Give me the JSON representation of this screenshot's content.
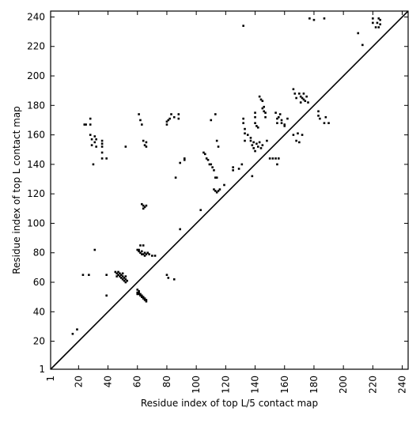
{
  "chart_data": {
    "type": "scatter",
    "subtype": "contact-map",
    "xlabel": "Residue index of top L/5 contact map",
    "ylabel": "Residue index of top L contact map",
    "xlim": [
      1,
      244
    ],
    "ylim": [
      1,
      244
    ],
    "xticks": [
      1,
      20,
      40,
      60,
      80,
      100,
      120,
      140,
      160,
      180,
      200,
      220,
      240
    ],
    "yticks": [
      1,
      20,
      40,
      60,
      80,
      100,
      120,
      140,
      160,
      180,
      200,
      220,
      240
    ],
    "diagonal": true,
    "marker_color": "#000000",
    "grid": false,
    "lower_triangle_points": [
      [
        16,
        25
      ],
      [
        19,
        28
      ],
      [
        23,
        65
      ],
      [
        27,
        65
      ],
      [
        31,
        82
      ],
      [
        39,
        51
      ],
      [
        39,
        65
      ],
      [
        45,
        67
      ],
      [
        46,
        66
      ],
      [
        47,
        65
      ],
      [
        48,
        64
      ],
      [
        49,
        63
      ],
      [
        50,
        62
      ],
      [
        51,
        61
      ],
      [
        52,
        60
      ],
      [
        53,
        61
      ],
      [
        47,
        67
      ],
      [
        48,
        66
      ],
      [
        49,
        65
      ],
      [
        50,
        64
      ],
      [
        51,
        63
      ],
      [
        52,
        62
      ],
      [
        46,
        64
      ],
      [
        50,
        66
      ],
      [
        52,
        64
      ],
      [
        60,
        55
      ],
      [
        60,
        53
      ],
      [
        61,
        54
      ],
      [
        61,
        52
      ],
      [
        62,
        52
      ],
      [
        62,
        51
      ],
      [
        63,
        51
      ],
      [
        63,
        50
      ],
      [
        64,
        50
      ],
      [
        64,
        49
      ],
      [
        65,
        49
      ],
      [
        65,
        48
      ],
      [
        66,
        48
      ],
      [
        66,
        47
      ],
      [
        60,
        52
      ],
      [
        61,
        53
      ],
      [
        60,
        82
      ],
      [
        61,
        81
      ],
      [
        62,
        80
      ],
      [
        63,
        79
      ],
      [
        64,
        79
      ],
      [
        65,
        78
      ],
      [
        66,
        79
      ],
      [
        67,
        80
      ],
      [
        62,
        85
      ],
      [
        64,
        85
      ],
      [
        61,
        82
      ],
      [
        63,
        81
      ],
      [
        65,
        80
      ],
      [
        68,
        79
      ],
      [
        70,
        78
      ],
      [
        72,
        78
      ],
      [
        63,
        113
      ],
      [
        64,
        112
      ],
      [
        65,
        111
      ],
      [
        66,
        112
      ],
      [
        64,
        110
      ],
      [
        80,
        65
      ],
      [
        81,
        63
      ],
      [
        85,
        62
      ],
      [
        86,
        131
      ],
      [
        89,
        96
      ],
      [
        92,
        144
      ],
      [
        92,
        143
      ],
      [
        89,
        141
      ],
      [
        103,
        109
      ],
      [
        105,
        148
      ],
      [
        106,
        147
      ],
      [
        107,
        144
      ],
      [
        108,
        143
      ],
      [
        109,
        140
      ],
      [
        110,
        140
      ],
      [
        111,
        138
      ],
      [
        112,
        136
      ],
      [
        113,
        131
      ],
      [
        114,
        131
      ],
      [
        112,
        123
      ],
      [
        113,
        122
      ],
      [
        114,
        121
      ],
      [
        115,
        122
      ],
      [
        116,
        123
      ],
      [
        119,
        126
      ],
      [
        125,
        136
      ],
      [
        125,
        138
      ],
      [
        129,
        137
      ],
      [
        131,
        140
      ],
      [
        133,
        156
      ],
      [
        135,
        160
      ],
      [
        137,
        158
      ],
      [
        138,
        132
      ],
      [
        138,
        153
      ],
      [
        139,
        151
      ],
      [
        140,
        149
      ],
      [
        141,
        154
      ],
      [
        142,
        152
      ],
      [
        143,
        155
      ],
      [
        144,
        151
      ],
      [
        145,
        153
      ],
      [
        137,
        156
      ],
      [
        139,
        155
      ],
      [
        148,
        156
      ],
      [
        150,
        144
      ],
      [
        152,
        144
      ],
      [
        154,
        144
      ],
      [
        155,
        140
      ],
      [
        156,
        144
      ],
      [
        158,
        168
      ],
      [
        160,
        166
      ],
      [
        166,
        160
      ],
      [
        168,
        156
      ],
      [
        169,
        161
      ],
      [
        170,
        155
      ],
      [
        172,
        160
      ]
    ],
    "upper_triangle_points": [
      [
        24,
        167
      ],
      [
        25,
        167
      ],
      [
        28,
        171
      ],
      [
        28,
        167
      ],
      [
        28,
        160
      ],
      [
        29,
        157
      ],
      [
        29,
        153
      ],
      [
        30,
        140
      ],
      [
        31,
        159
      ],
      [
        31,
        155
      ],
      [
        32,
        152
      ],
      [
        32,
        157
      ],
      [
        36,
        156
      ],
      [
        36,
        154
      ],
      [
        36,
        152
      ],
      [
        36,
        148
      ],
      [
        36,
        144
      ],
      [
        39,
        144
      ],
      [
        52,
        152
      ],
      [
        61,
        174
      ],
      [
        62,
        170
      ],
      [
        63,
        167
      ],
      [
        64,
        156
      ],
      [
        65,
        153
      ],
      [
        66,
        152
      ],
      [
        66,
        155
      ],
      [
        80,
        167
      ],
      [
        80,
        169
      ],
      [
        81,
        170
      ],
      [
        82,
        171
      ],
      [
        83,
        174
      ],
      [
        85,
        172
      ],
      [
        88,
        171
      ],
      [
        88,
        174
      ],
      [
        110,
        170
      ],
      [
        113,
        174
      ],
      [
        114,
        156
      ],
      [
        115,
        152
      ],
      [
        132,
        234
      ],
      [
        132,
        171
      ],
      [
        132,
        168
      ],
      [
        133,
        164
      ],
      [
        133,
        161
      ],
      [
        140,
        175
      ],
      [
        140,
        172
      ],
      [
        140,
        168
      ],
      [
        141,
        166
      ],
      [
        142,
        165
      ],
      [
        143,
        186
      ],
      [
        144,
        184
      ],
      [
        145,
        183
      ],
      [
        146,
        179
      ],
      [
        146,
        176
      ],
      [
        147,
        172
      ],
      [
        145,
        178
      ],
      [
        147,
        175
      ],
      [
        154,
        175
      ],
      [
        155,
        171
      ],
      [
        155,
        168
      ],
      [
        156,
        172
      ],
      [
        157,
        174
      ],
      [
        158,
        170
      ],
      [
        160,
        167
      ],
      [
        162,
        171
      ],
      [
        166,
        191
      ],
      [
        167,
        188
      ],
      [
        168,
        185
      ],
      [
        170,
        188
      ],
      [
        171,
        186
      ],
      [
        172,
        185
      ],
      [
        171,
        182
      ],
      [
        173,
        184
      ],
      [
        174,
        183
      ],
      [
        175,
        186
      ],
      [
        173,
        188
      ],
      [
        176,
        182
      ],
      [
        177,
        239
      ],
      [
        180,
        238
      ],
      [
        183,
        176
      ],
      [
        183,
        173
      ],
      [
        184,
        171
      ],
      [
        187,
        168
      ],
      [
        188,
        172
      ],
      [
        190,
        168
      ],
      [
        187,
        239
      ],
      [
        210,
        229
      ],
      [
        213,
        221
      ],
      [
        220,
        239
      ],
      [
        220,
        236
      ],
      [
        222,
        233
      ],
      [
        223,
        236
      ],
      [
        224,
        239
      ],
      [
        225,
        238
      ],
      [
        224,
        233
      ],
      [
        225,
        235
      ]
    ]
  }
}
